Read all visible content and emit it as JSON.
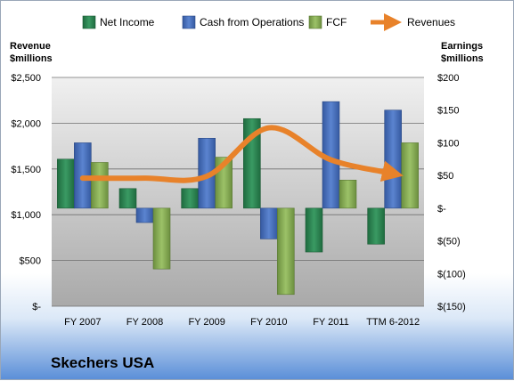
{
  "chart_data": {
    "type": "bar",
    "categories": [
      "FY 2007",
      "FY 2008",
      "FY 2009",
      "FY 2010",
      "FY 2011",
      "TTM 6-2012"
    ],
    "series": [
      {
        "name": "Net Income",
        "axis": "right",
        "values": [
          75,
          30,
          30,
          137,
          -67,
          -55
        ],
        "color": "#2e8b57"
      },
      {
        "name": "Cash from Operations",
        "axis": "right",
        "values": [
          100,
          -22,
          107,
          -47,
          163,
          150
        ],
        "color": "#4a74c4"
      },
      {
        "name": "FCF",
        "axis": "right",
        "values": [
          70,
          -93,
          78,
          -132,
          43,
          100
        ],
        "color": "#8db25c"
      },
      {
        "name": "Revenues",
        "axis": "left",
        "type": "line",
        "values": [
          1400,
          1400,
          1420,
          1950,
          1600,
          1450
        ],
        "color": "#e8822a"
      }
    ],
    "left_axis": {
      "title_line1": "Revenue",
      "title_line2": "$millions",
      "ylim": [
        0,
        2500
      ],
      "ticks": [
        {
          "value": 0,
          "label": "$-"
        },
        {
          "value": 500,
          "label": "$500"
        },
        {
          "value": 1000,
          "label": "$1,000"
        },
        {
          "value": 1500,
          "label": "$1,500"
        },
        {
          "value": 2000,
          "label": "$2,000"
        },
        {
          "value": 2500,
          "label": "$2,500"
        }
      ]
    },
    "right_axis": {
      "title_line1": "Earnings",
      "title_line2": "$millions",
      "ylim": [
        -150,
        200
      ],
      "ticks": [
        {
          "value": 200,
          "label": "$200"
        },
        {
          "value": 150,
          "label": "$150"
        },
        {
          "value": 100,
          "label": "$100"
        },
        {
          "value": 50,
          "label": "$50"
        },
        {
          "value": 0,
          "label": "$-"
        },
        {
          "value": -50,
          "label": "$(50)"
        },
        {
          "value": -100,
          "label": "$(100)"
        },
        {
          "value": -150,
          "label": "$(150)"
        }
      ]
    },
    "grid": true,
    "legend_position": "top"
  },
  "caption": "Skechers USA"
}
